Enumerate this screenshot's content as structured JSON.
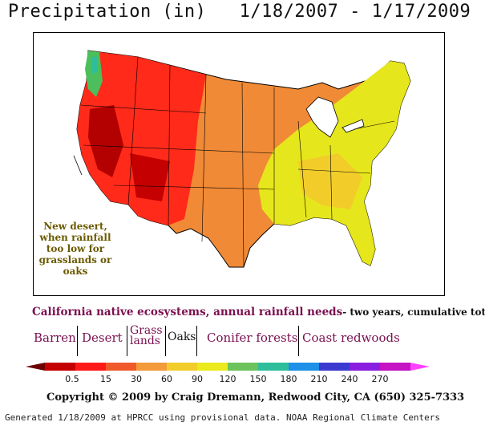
{
  "title": "Precipitation (in)   1/18/2007 - 1/17/2009",
  "annotation": "New desert, when rainfall too low for grasslands or oaks",
  "ecosystems": {
    "heading_main": "California native ecosystems, annual rainfall needs",
    "heading_sub": "- two years, cumulative  totals",
    "barren": "Barren",
    "desert": "Desert",
    "grass_line1": "Grass",
    "grass_line2": "lands",
    "oaks": "Oaks",
    "conifer": "Conifer forests",
    "redwoods": "Coast redwoods"
  },
  "legend": {
    "labels": [
      "0.5",
      "15",
      "30",
      "60",
      "90",
      "120",
      "150",
      "180",
      "210",
      "240",
      "270"
    ],
    "colors": [
      "#6b0000",
      "#c40000",
      "#ff1a1a",
      "#f05a2a",
      "#f39a3a",
      "#f2cd2a",
      "#eaea1c",
      "#6cc35c",
      "#2fbe9b",
      "#1e90e8",
      "#3a3ad0",
      "#8a1ee0",
      "#c414c4",
      "#ff40ff"
    ]
  },
  "copyright": "Copyright © 2009 by Craig Dremann, Redwood City, CA (650) 325-7333",
  "footer": "Generated 1/18/2009 at HPRCC using provisional data.   NOAA Regional Climate Centers"
}
